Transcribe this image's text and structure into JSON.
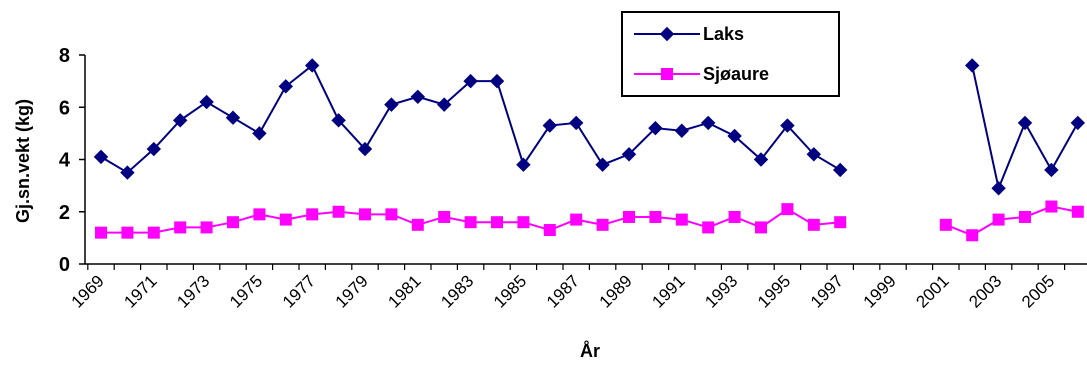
{
  "chart_data": {
    "type": "line",
    "xlabel": "År",
    "ylabel": "Gj.sn.vekt (kg)",
    "ylim": [
      0,
      8
    ],
    "yticks": [
      0,
      2,
      4,
      6,
      8
    ],
    "xlim": [
      1969,
      2006
    ],
    "xtick_labels": [
      "1969",
      "1971",
      "1973",
      "1975",
      "1977",
      "1979",
      "1981",
      "1983",
      "1985",
      "1987",
      "1989",
      "1991",
      "1993",
      "1995",
      "1997",
      "1999",
      "2001",
      "2003",
      "2005"
    ],
    "grid": false,
    "legend": "top-right",
    "series": [
      {
        "name": "Laks",
        "color": "#000080",
        "marker": "diamond",
        "points": [
          [
            1969,
            4.1
          ],
          [
            1970,
            3.5
          ],
          [
            1971,
            4.4
          ],
          [
            1972,
            5.5
          ],
          [
            1973,
            6.2
          ],
          [
            1974,
            5.6
          ],
          [
            1975,
            5.0
          ],
          [
            1976,
            6.8
          ],
          [
            1977,
            7.6
          ],
          [
            1978,
            5.5
          ],
          [
            1979,
            4.4
          ],
          [
            1980,
            6.1
          ],
          [
            1981,
            6.4
          ],
          [
            1982,
            6.1
          ],
          [
            1983,
            7.0
          ],
          [
            1984,
            7.0
          ],
          [
            1985,
            3.8
          ],
          [
            1986,
            5.3
          ],
          [
            1987,
            5.4
          ],
          [
            1988,
            3.8
          ],
          [
            1989,
            4.2
          ],
          [
            1990,
            5.2
          ],
          [
            1991,
            5.1
          ],
          [
            1992,
            5.4
          ],
          [
            1993,
            4.9
          ],
          [
            1994,
            4.0
          ],
          [
            1995,
            5.3
          ],
          [
            1996,
            4.2
          ],
          [
            1997,
            3.6
          ],
          null,
          [
            2002,
            7.6
          ],
          [
            2003,
            2.9
          ],
          [
            2004,
            5.4
          ],
          [
            2005,
            3.6
          ],
          [
            2006,
            5.4
          ]
        ]
      },
      {
        "name": "Sjøaure",
        "color": "#FF00FF",
        "marker": "square",
        "points": [
          [
            1969,
            1.2
          ],
          [
            1970,
            1.2
          ],
          [
            1971,
            1.2
          ],
          [
            1972,
            1.4
          ],
          [
            1973,
            1.4
          ],
          [
            1974,
            1.6
          ],
          [
            1975,
            1.9
          ],
          [
            1976,
            1.7
          ],
          [
            1977,
            1.9
          ],
          [
            1978,
            2.0
          ],
          [
            1979,
            1.9
          ],
          [
            1980,
            1.9
          ],
          [
            1981,
            1.5
          ],
          [
            1982,
            1.8
          ],
          [
            1983,
            1.6
          ],
          [
            1984,
            1.6
          ],
          [
            1985,
            1.6
          ],
          [
            1986,
            1.3
          ],
          [
            1987,
            1.7
          ],
          [
            1988,
            1.5
          ],
          [
            1989,
            1.8
          ],
          [
            1990,
            1.8
          ],
          [
            1991,
            1.7
          ],
          [
            1992,
            1.4
          ],
          [
            1993,
            1.8
          ],
          [
            1994,
            1.4
          ],
          [
            1995,
            2.1
          ],
          [
            1996,
            1.5
          ],
          [
            1997,
            1.6
          ],
          null,
          [
            2001,
            1.5
          ],
          [
            2002,
            1.1
          ],
          [
            2003,
            1.7
          ],
          [
            2004,
            1.8
          ],
          [
            2005,
            2.2
          ],
          [
            2006,
            2.0
          ]
        ]
      }
    ]
  }
}
